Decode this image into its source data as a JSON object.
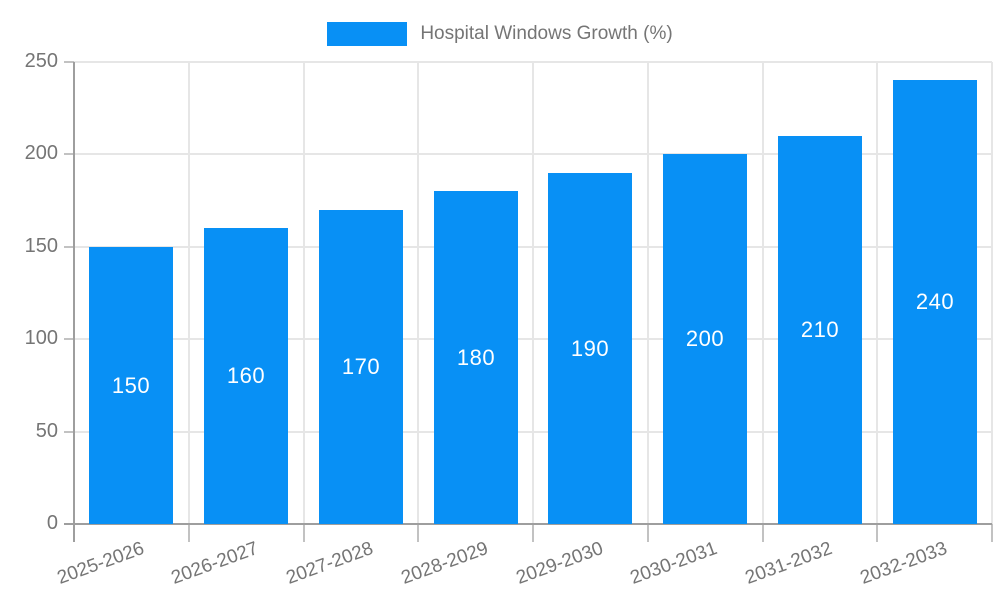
{
  "chart_data": {
    "type": "bar",
    "title": "Hospital Windows Growth (%)",
    "categories": [
      "2025-2026",
      "2026-2027",
      "2027-2028",
      "2028-2029",
      "2029-2030",
      "2030-2031",
      "2031-2032",
      "2032-2033"
    ],
    "values": [
      150,
      160,
      170,
      180,
      190,
      200,
      210,
      240
    ],
    "value_labels": [
      "150",
      "160",
      "170",
      "180",
      "190",
      "200",
      "210",
      "240"
    ],
    "xlabel": "",
    "ylabel": "",
    "ylim": [
      0,
      250
    ],
    "yticks": [
      0,
      50,
      100,
      150,
      200,
      250
    ],
    "grid": true,
    "legend_position": "top-center",
    "bar_color": "#0890F5",
    "value_label_color": "#ffffff",
    "axis_text_color": "#757575",
    "axis_line_color": "#9e9e9e",
    "grid_color": "#e6e6e6",
    "tick_color": "#c2c2c2",
    "background_color": "#ffffff"
  }
}
